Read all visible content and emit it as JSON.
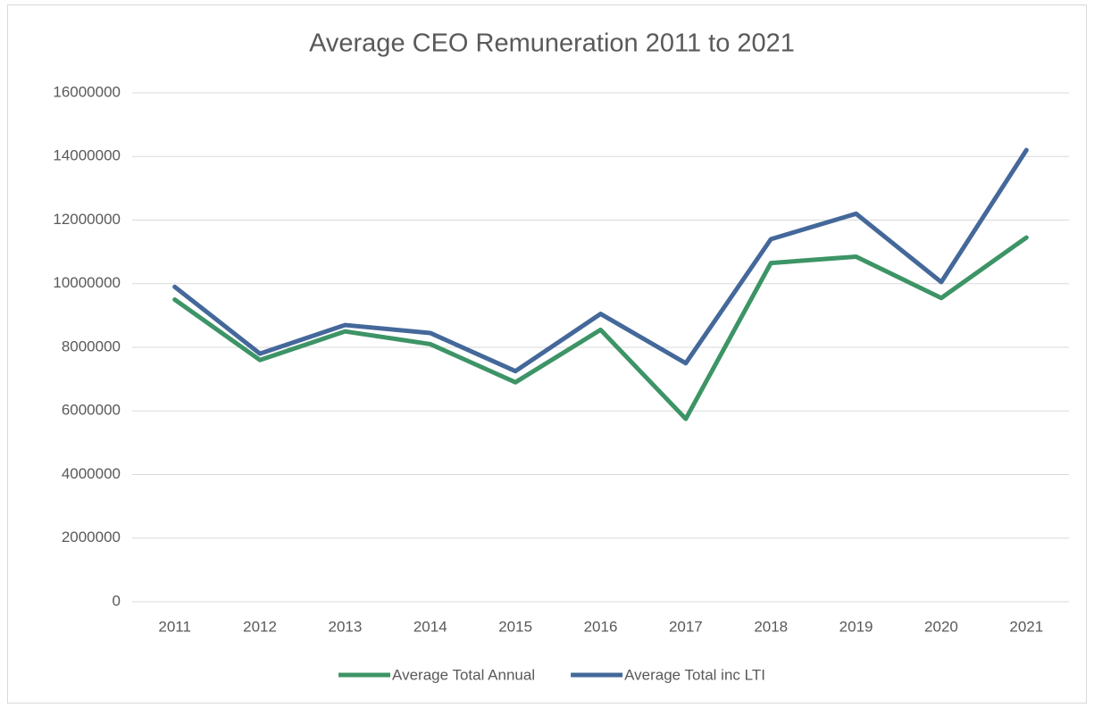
{
  "chart_data": {
    "type": "line",
    "title": "Average CEO Remuneration 2011 to 2021",
    "categories": [
      "2011",
      "2012",
      "2013",
      "2014",
      "2015",
      "2016",
      "2017",
      "2018",
      "2019",
      "2020",
      "2021"
    ],
    "series": [
      {
        "name": "Average Total Annual",
        "color": "#3d9466",
        "values": [
          9500000,
          7600000,
          8500000,
          8100000,
          6900000,
          8550000,
          5750000,
          10650000,
          10850000,
          9550000,
          11450000
        ]
      },
      {
        "name": "Average Total inc LTI",
        "color": "#44689a",
        "values": [
          9900000,
          7800000,
          8700000,
          8450000,
          7250000,
          9050000,
          7500000,
          11400000,
          12200000,
          10050000,
          14200000
        ]
      }
    ],
    "ylim": [
      0,
      16000000
    ],
    "yticks": [
      0,
      2000000,
      4000000,
      6000000,
      8000000,
      10000000,
      12000000,
      14000000,
      16000000
    ],
    "grid": true,
    "legend": "bottom"
  }
}
